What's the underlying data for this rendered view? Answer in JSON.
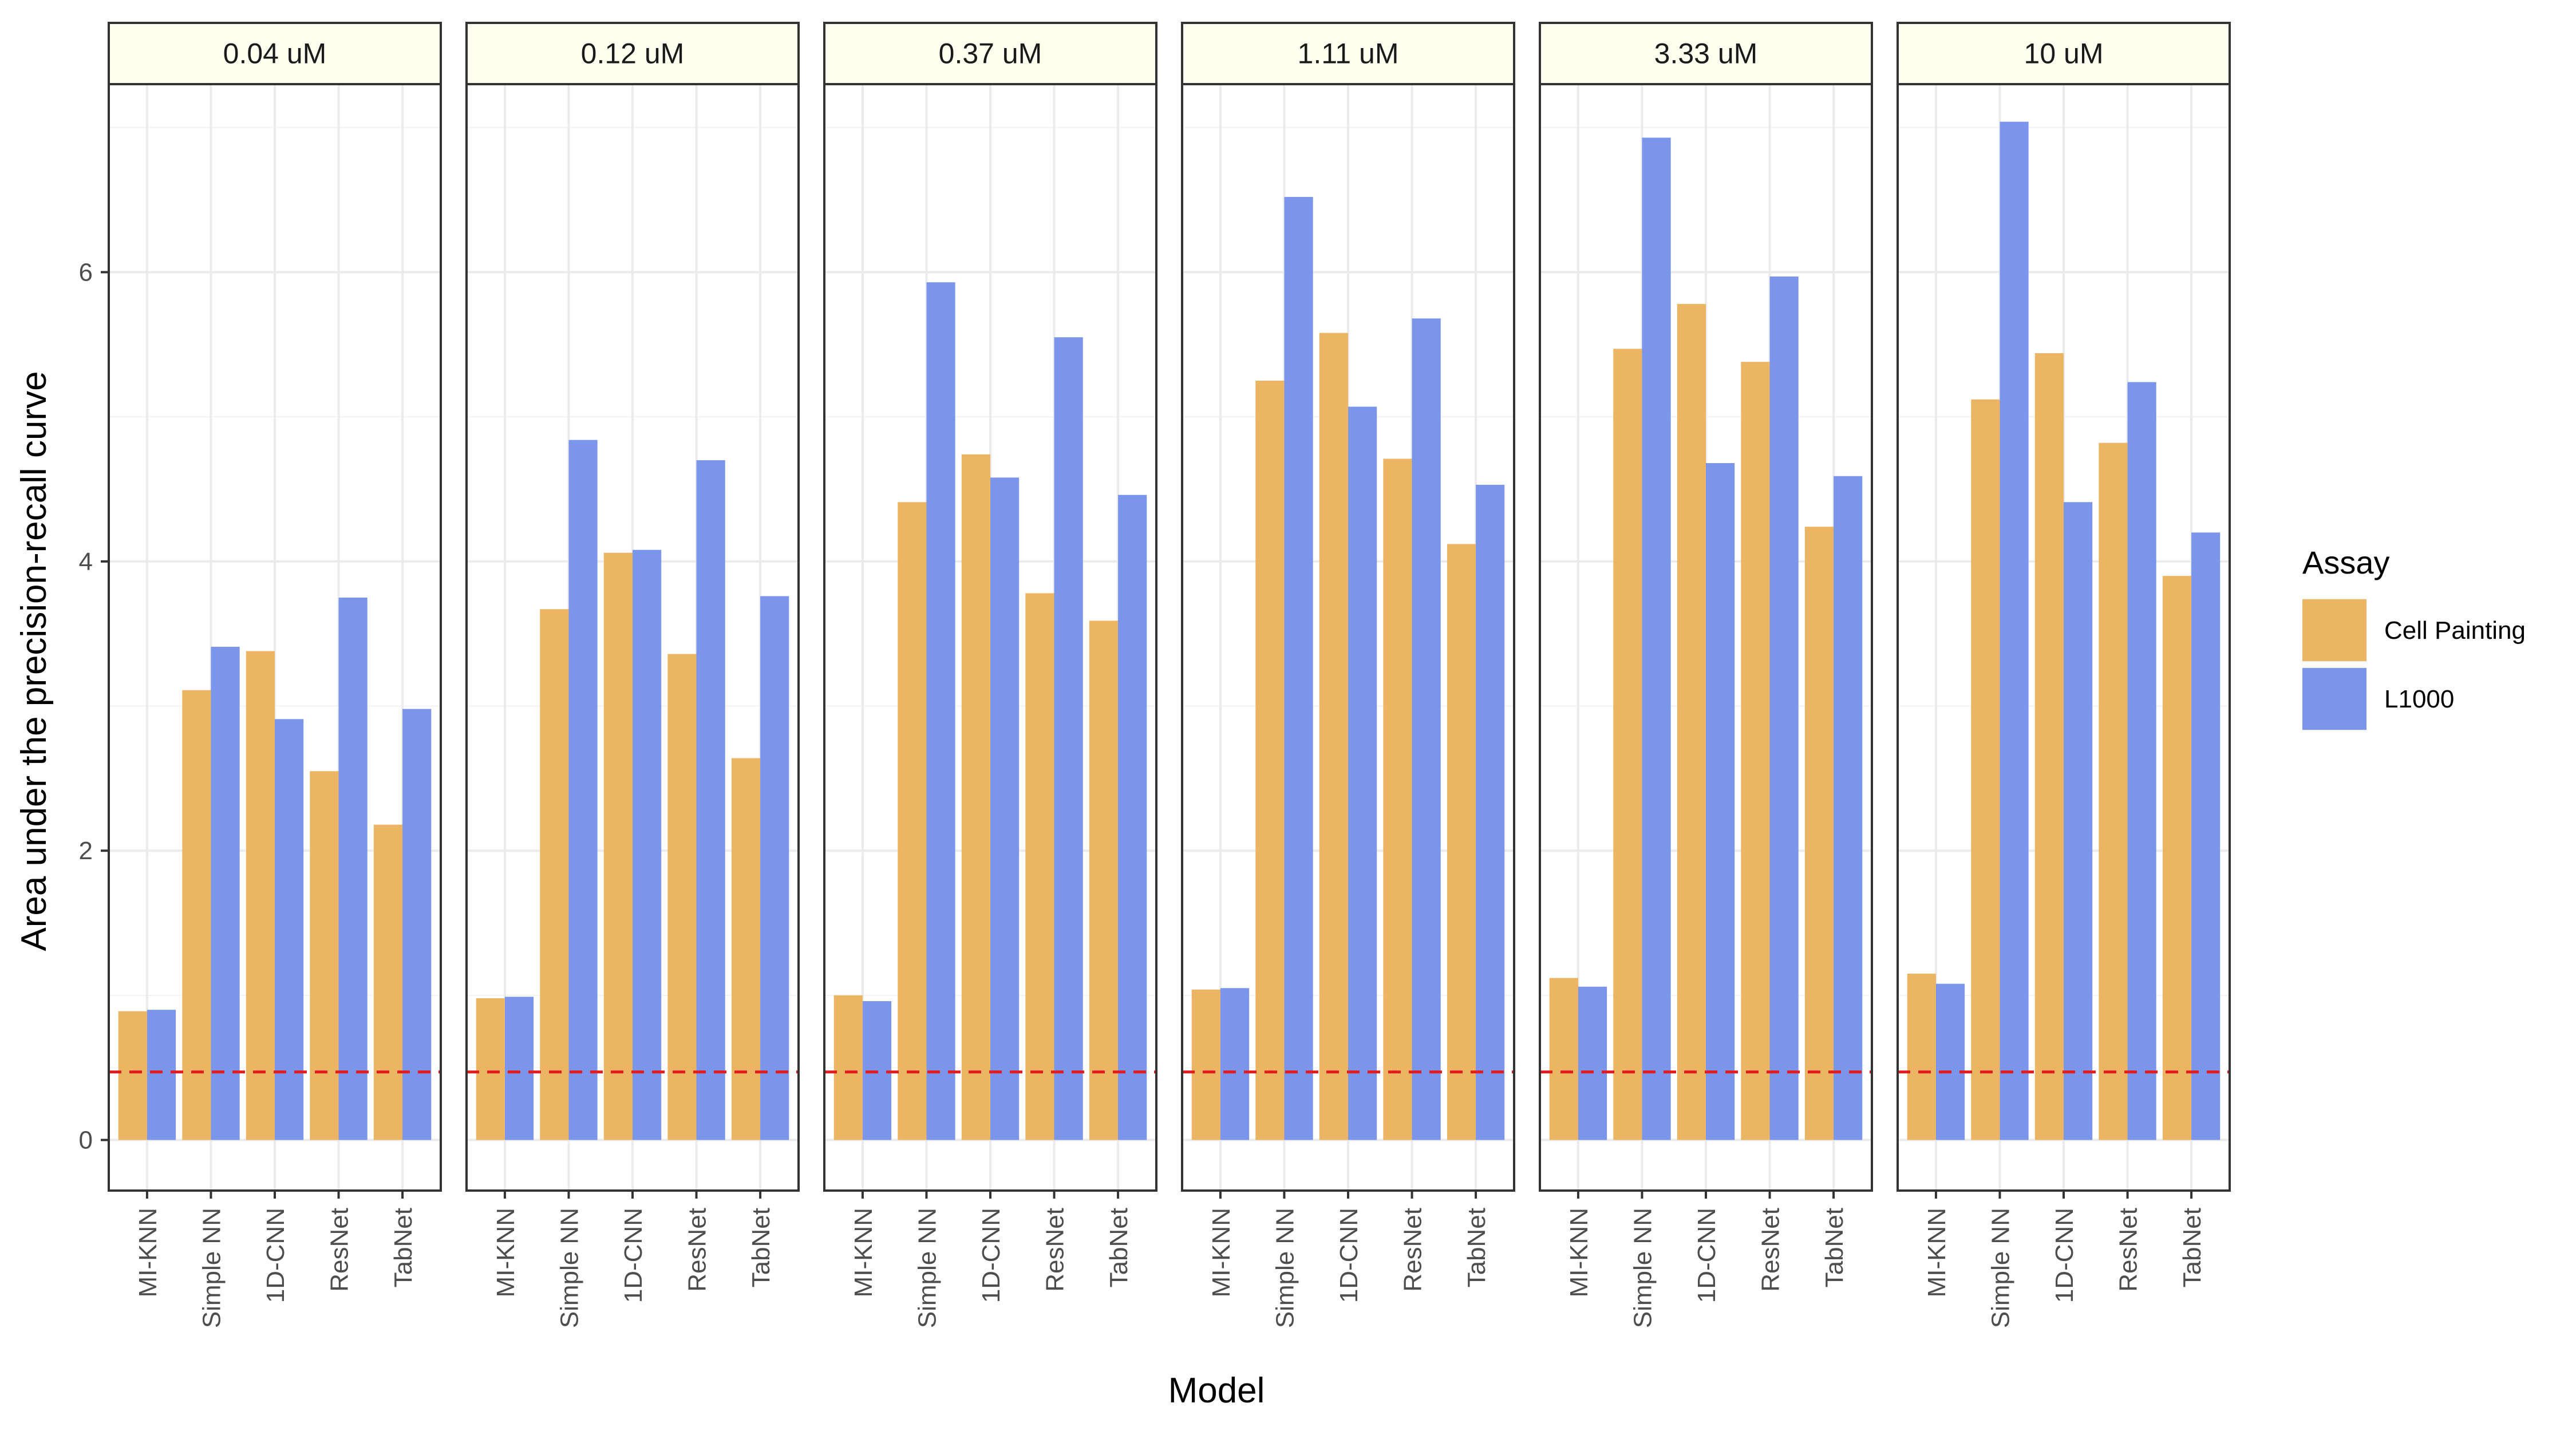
{
  "chart_data": {
    "type": "bar",
    "facet_by": "concentration",
    "facets": [
      {
        "label": "0.04 uM",
        "series": [
          {
            "name": "Cell Painting",
            "values": [
              0.89,
              3.11,
              3.38,
              2.55,
              2.18
            ]
          },
          {
            "name": "L1000",
            "values": [
              0.9,
              3.41,
              2.91,
              3.75,
              2.98
            ]
          }
        ]
      },
      {
        "label": "0.12 uM",
        "series": [
          {
            "name": "Cell Painting",
            "values": [
              0.98,
              3.67,
              4.06,
              3.36,
              2.64
            ]
          },
          {
            "name": "L1000",
            "values": [
              0.99,
              4.84,
              4.08,
              4.7,
              3.76
            ]
          }
        ]
      },
      {
        "label": "0.37 uM",
        "series": [
          {
            "name": "Cell Painting",
            "values": [
              1.0,
              4.41,
              4.74,
              3.78,
              3.59
            ]
          },
          {
            "name": "L1000",
            "values": [
              0.96,
              5.93,
              4.58,
              5.55,
              4.46
            ]
          }
        ]
      },
      {
        "label": "1.11 uM",
        "series": [
          {
            "name": "Cell Painting",
            "values": [
              1.04,
              5.25,
              5.58,
              4.71,
              4.12
            ]
          },
          {
            "name": "L1000",
            "values": [
              1.05,
              6.52,
              5.07,
              5.68,
              4.53
            ]
          }
        ]
      },
      {
        "label": "3.33 uM",
        "series": [
          {
            "name": "Cell Painting",
            "values": [
              1.12,
              5.47,
              5.78,
              5.38,
              4.24
            ]
          },
          {
            "name": "L1000",
            "values": [
              1.06,
              6.93,
              4.68,
              5.97,
              4.59
            ]
          }
        ]
      },
      {
        "label": "10 uM",
        "series": [
          {
            "name": "Cell Painting",
            "values": [
              1.15,
              5.12,
              5.44,
              4.82,
              3.9
            ]
          },
          {
            "name": "L1000",
            "values": [
              1.08,
              7.04,
              4.41,
              5.24,
              4.2
            ]
          }
        ]
      }
    ],
    "categories": [
      "MI-KNN",
      "Simple NN",
      "1D-CNN",
      "ResNet",
      "TabNet"
    ],
    "xlabel": "Model",
    "ylabel": "Area under the precision-recall curve",
    "ylim": [
      -0.35,
      7.3
    ],
    "yticks": [
      0,
      2,
      4,
      6
    ],
    "reference_line": {
      "value": 0.47,
      "style": "dashed",
      "color": "#e41a1c"
    },
    "grid": true,
    "legend": {
      "title": "Assay",
      "position": "right",
      "entries": [
        {
          "name": "Cell Painting",
          "color": "#EBB563"
        },
        {
          "name": "L1000",
          "color": "#7B95EB"
        }
      ]
    },
    "colors": {
      "Cell Painting": "#EBB563",
      "L1000": "#7B95EB",
      "strip_fill": "#FFFFF0",
      "grid": "#EBEBEB",
      "panel_border": "#333333"
    }
  }
}
